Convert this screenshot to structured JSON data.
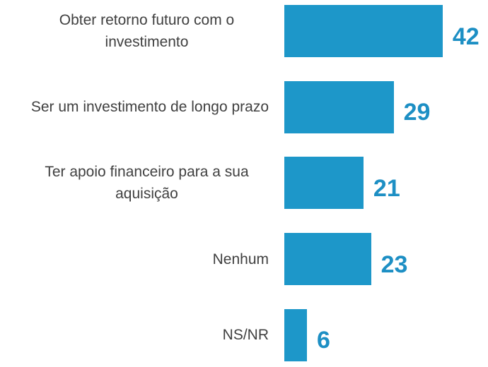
{
  "chart_data": {
    "type": "bar",
    "orientation": "horizontal",
    "categories": [
      "Obter retorno futuro com o investimento",
      "Ser um investimento de longo prazo",
      "Ter apoio financeiro para a sua aquisição",
      "Nenhum",
      "NS/NR"
    ],
    "values": [
      42,
      29,
      21,
      23,
      6
    ],
    "color": "#1d97c9"
  }
}
